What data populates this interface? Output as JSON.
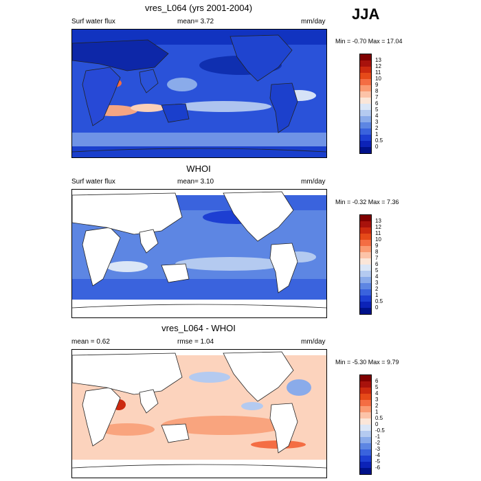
{
  "season": "JJA",
  "panels": [
    {
      "title": "vres_L064 (yrs 2001-2004)",
      "left_label": "Surf water flux",
      "mid_label": "mean=   3.72",
      "units": "mm/day",
      "minmax": "Min =  -0.70 Max =  17.04",
      "colorbar_labels": [
        "13",
        "12",
        "11",
        "10",
        "9",
        "8",
        "7",
        "6",
        "5",
        "4",
        "3",
        "2",
        "1",
        "0.5",
        "0"
      ],
      "colorbar_colors": [
        "#7f0000",
        "#a8120c",
        "#cc2a10",
        "#e64a19",
        "#f46d43",
        "#fa9a72",
        "#fcc3a8",
        "#fbe6d8",
        "#dbe6f6",
        "#b4caf0",
        "#8aabea",
        "#5d86e3",
        "#3a63dd",
        "#1d3fd2",
        "#0c23b8",
        "#00128a"
      ]
    },
    {
      "title": "WHOI",
      "left_label": "Surf water flux",
      "mid_label": "mean=   3.10",
      "units": "mm/day",
      "minmax": "Min =  -0.32 Max =   7.36",
      "colorbar_labels": [
        "13",
        "12",
        "11",
        "10",
        "9",
        "8",
        "7",
        "6",
        "5",
        "4",
        "3",
        "2",
        "1",
        "0.5",
        "0"
      ],
      "colorbar_colors": [
        "#7f0000",
        "#a8120c",
        "#cc2a10",
        "#e64a19",
        "#f46d43",
        "#fa9a72",
        "#fcc3a8",
        "#fbe6d8",
        "#dbe6f6",
        "#b4caf0",
        "#8aabea",
        "#5d86e3",
        "#3a63dd",
        "#1d3fd2",
        "#0c23b8",
        "#00128a"
      ]
    },
    {
      "title": "vres_L064 - WHOI",
      "left_label": "mean =   0.62",
      "mid_label": "rmse =   1.04",
      "units": "mm/day",
      "minmax": "Min =  -5.30 Max =   9.79",
      "colorbar_labels": [
        "6",
        "5",
        "4",
        "3",
        "2",
        "1",
        "0.5",
        "0",
        "-0.5",
        "-1",
        "-2",
        "-3",
        "-4",
        "-5",
        "-6"
      ],
      "colorbar_colors": [
        "#7f0000",
        "#a8120c",
        "#cc2a10",
        "#e64a19",
        "#f46d43",
        "#fa9a72",
        "#fcc3a8",
        "#fbe6d8",
        "#dbe6f6",
        "#b4caf0",
        "#8aabea",
        "#5d86e3",
        "#3a63dd",
        "#1d3fd2",
        "#0c23b8",
        "#00128a"
      ]
    }
  ]
}
